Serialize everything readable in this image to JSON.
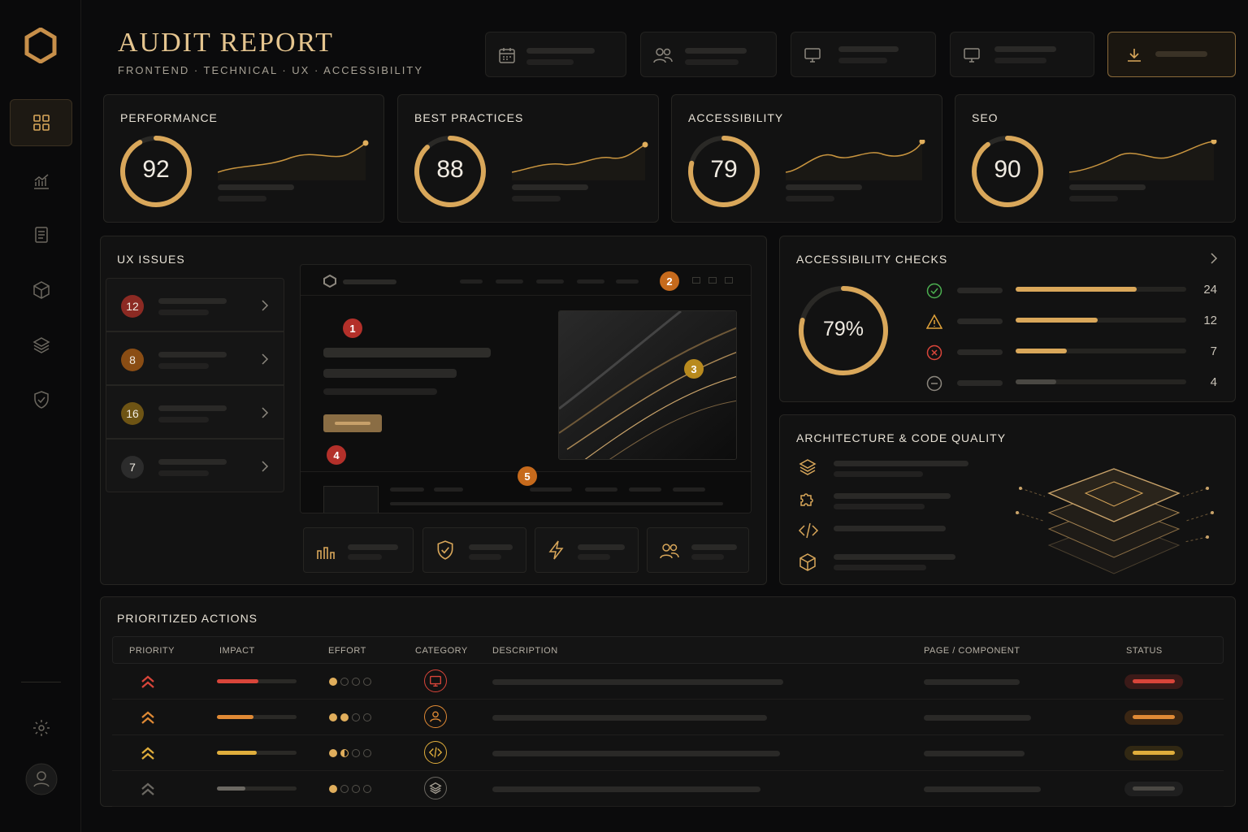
{
  "header": {
    "title": "AUDIT REPORT",
    "subtitle": "FRONTEND · TECHNICAL · UX · ACCESSIBILITY"
  },
  "sidebar": {
    "items": [
      {
        "icon": "grid-icon",
        "active": true
      },
      {
        "icon": "chart-icon"
      },
      {
        "icon": "document-icon"
      },
      {
        "icon": "cube-icon"
      },
      {
        "icon": "layers-icon"
      },
      {
        "icon": "shield-check-icon"
      }
    ],
    "bottom": [
      {
        "icon": "gear-icon"
      },
      {
        "icon": "user-avatar-icon"
      }
    ]
  },
  "toolbar": {
    "buttons": [
      {
        "icon": "calendar-icon"
      },
      {
        "icon": "users-icon"
      },
      {
        "icon": "monitor-icon"
      },
      {
        "icon": "monitor-icon"
      },
      {
        "icon": "download-icon"
      }
    ]
  },
  "scores": [
    {
      "label": "PERFORMANCE",
      "value": "92",
      "fraction": 0.92
    },
    {
      "label": "BEST PRACTICES",
      "value": "88",
      "fraction": 0.88
    },
    {
      "label": "ACCESSIBILITY",
      "value": "79",
      "fraction": 0.79
    },
    {
      "label": "SEO",
      "value": "90",
      "fraction": 0.9
    }
  ],
  "ux_issues": {
    "title": "UX ISSUES",
    "items": [
      {
        "count": "12",
        "color": "#8c2a23"
      },
      {
        "count": "8",
        "color": "#8a4d14"
      },
      {
        "count": "16",
        "color": "#6e5414"
      },
      {
        "count": "7",
        "color": "#2c2c2c"
      }
    ],
    "markers": [
      "1",
      "2",
      "3",
      "4",
      "5"
    ],
    "mini_icons": [
      "bar-chart-icon",
      "shield-check-icon",
      "bolt-icon",
      "users-icon"
    ]
  },
  "accessibility_checks": {
    "title": "ACCESSIBILITY CHECKS",
    "overall": "79%",
    "overall_fraction": 0.79,
    "rows": [
      {
        "icon": "check-circle-icon",
        "color": "#4caf50",
        "count": "24",
        "fill": 0.71
      },
      {
        "icon": "warning-icon",
        "color": "#e0a23a",
        "count": "12",
        "fill": 0.48
      },
      {
        "icon": "error-circle-icon",
        "color": "#d9453a",
        "count": "7",
        "fill": 0.3
      },
      {
        "icon": "minus-circle-icon",
        "color": "#8c877e",
        "count": "4",
        "fill": 0.24
      }
    ]
  },
  "architecture": {
    "title": "ARCHITECTURE & CODE QUALITY",
    "icons": [
      "layers-icon",
      "puzzle-icon",
      "code-icon",
      "cube-icon"
    ]
  },
  "actions": {
    "title": "PRIORITIZED ACTIONS",
    "columns": {
      "priority": "PRIORITY",
      "impact": "IMPACT",
      "effort": "EFFORT",
      "category": "CATEGORY",
      "description": "DESCRIPTION",
      "page": "PAGE / COMPONENT",
      "status": "STATUS"
    },
    "rows": [
      {
        "color": "#d9453a",
        "impact": 0.52,
        "effort": 1,
        "category_icon": "monitor-icon",
        "status_color": "#8c2a23"
      },
      {
        "color": "#e08a35",
        "impact": 0.46,
        "effort": 2,
        "category_icon": "user-icon",
        "status_color": "#8a4d14"
      },
      {
        "color": "#e0ae3c",
        "impact": 0.5,
        "effort": 1.5,
        "category_icon": "code-icon",
        "status_color": "#6e5414"
      },
      {
        "color": "#6b6862",
        "impact": 0.36,
        "effort": 1,
        "category_icon": "layers-icon",
        "status_color": "#3a3a3a"
      }
    ]
  },
  "colors": {
    "accent": "#e0ae5c",
    "background": "#0b0b0c",
    "card": "#121212"
  }
}
